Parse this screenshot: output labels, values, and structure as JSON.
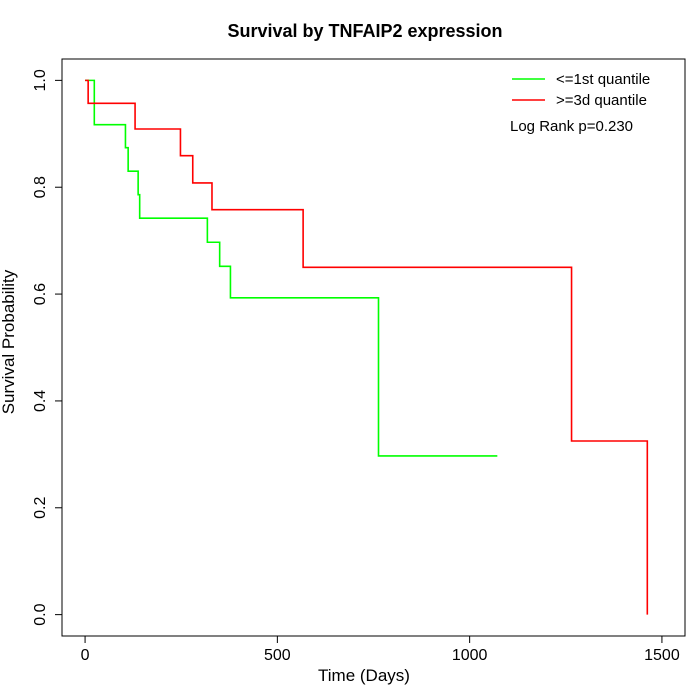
{
  "chart_data": {
    "type": "line",
    "step": true,
    "title": "Survival by TNFAIP2 expression",
    "xlabel": "Time (Days)",
    "ylabel": "Survival Probability",
    "xlim": [
      -60,
      1560
    ],
    "ylim": [
      -0.04,
      1.04
    ],
    "xticks": [
      0,
      500,
      1000,
      1500
    ],
    "yticks": [
      0.0,
      0.2,
      0.4,
      0.6,
      0.8,
      1.0
    ],
    "xtick_labels": [
      "0",
      "500",
      "1000",
      "1500"
    ],
    "ytick_labels": [
      "0.0",
      "0.2",
      "0.4",
      "0.6",
      "0.8",
      "1.0"
    ],
    "grid": false,
    "legend_position": "top-right",
    "annotation": "Log Rank p=0.230",
    "series": [
      {
        "name": "<=1st quantile",
        "color": "#00ff00",
        "x": [
          0,
          24,
          24,
          105,
          105,
          112,
          112,
          138,
          138,
          142,
          142,
          318,
          318,
          350,
          350,
          378,
          378,
          763,
          763,
          1072
        ],
        "y": [
          1.0,
          1.0,
          0.917,
          0.917,
          0.874,
          0.874,
          0.83,
          0.83,
          0.786,
          0.786,
          0.742,
          0.742,
          0.697,
          0.697,
          0.652,
          0.652,
          0.593,
          0.593,
          0.297,
          0.297
        ]
      },
      {
        "name": ">=3d quantile",
        "color": "#ff0000",
        "x": [
          0,
          8,
          8,
          130,
          130,
          248,
          248,
          280,
          280,
          330,
          330,
          567,
          567,
          1265,
          1265,
          1462,
          1462
        ],
        "y": [
          1.0,
          1.0,
          0.957,
          0.957,
          0.909,
          0.909,
          0.859,
          0.859,
          0.808,
          0.808,
          0.758,
          0.758,
          0.65,
          0.65,
          0.325,
          0.325,
          0.0
        ]
      }
    ]
  }
}
